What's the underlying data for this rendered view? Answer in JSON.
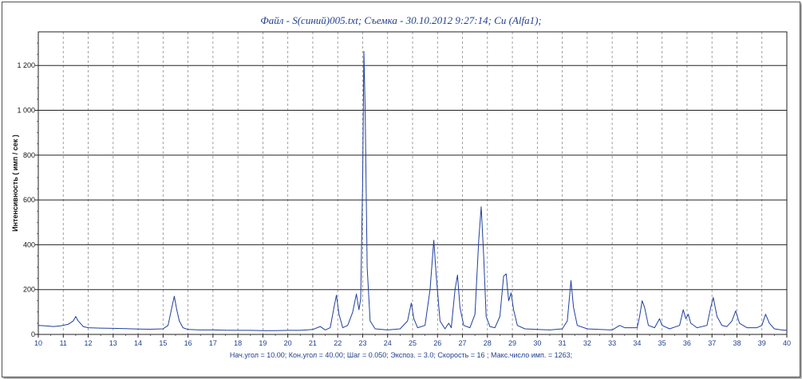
{
  "title": "Файл - S(синий)005.txt;  Съемка - 30.10.2012 9:27:14;   Cu (Alfa1);",
  "footer": "Нач.угол = 10.00;  Кон.угол = 40.00;  Шаг = 0.050;  Экспоз. = 3.0;  Скорость =  16 ;  Макс.число имп. = 1263;",
  "chart_data": {
    "type": "line",
    "title": "Файл - S(синий)005.txt;  Съемка - 30.10.2012 9:27:14;   Cu (Alfa1);",
    "xlabel": "",
    "ylabel": "Интенсивность  ( имп / сек )",
    "xlim": [
      10,
      40
    ],
    "ylim": [
      0,
      1400
    ],
    "x_ticks": [
      "10",
      "11",
      "12",
      "13",
      "14",
      "15",
      "16",
      "17",
      "18",
      "19",
      "20",
      "21",
      "22",
      "23",
      "24",
      "25",
      "26",
      "27",
      "28",
      "29",
      "30",
      "31",
      "32",
      "33",
      "34",
      "35",
      "36",
      "37",
      "38",
      "39",
      "40"
    ],
    "y_ticks": [
      "0",
      "200",
      "400",
      "600",
      "800",
      "1 000",
      "1 200"
    ],
    "grid": {
      "x": "dashed",
      "y": "solid"
    },
    "series": [
      {
        "color": "#1f3f9f",
        "points": [
          [
            10.0,
            40
          ],
          [
            10.3,
            38
          ],
          [
            10.6,
            35
          ],
          [
            10.9,
            38
          ],
          [
            11.2,
            45
          ],
          [
            11.4,
            60
          ],
          [
            11.5,
            80
          ],
          [
            11.6,
            60
          ],
          [
            11.8,
            35
          ],
          [
            12.0,
            30
          ],
          [
            12.5,
            28
          ],
          [
            13.0,
            27
          ],
          [
            13.5,
            26
          ],
          [
            14.0,
            24
          ],
          [
            14.5,
            23
          ],
          [
            15.0,
            25
          ],
          [
            15.2,
            40
          ],
          [
            15.35,
            120
          ],
          [
            15.45,
            170
          ],
          [
            15.55,
            110
          ],
          [
            15.65,
            60
          ],
          [
            15.8,
            30
          ],
          [
            16.0,
            22
          ],
          [
            16.5,
            20
          ],
          [
            17.0,
            20
          ],
          [
            17.5,
            19
          ],
          [
            18.0,
            18
          ],
          [
            18.5,
            18
          ],
          [
            19.0,
            17
          ],
          [
            19.5,
            17
          ],
          [
            20.0,
            18
          ],
          [
            20.5,
            18
          ],
          [
            21.0,
            22
          ],
          [
            21.3,
            35
          ],
          [
            21.5,
            20
          ],
          [
            21.7,
            30
          ],
          [
            21.85,
            120
          ],
          [
            21.95,
            175
          ],
          [
            22.05,
            90
          ],
          [
            22.2,
            30
          ],
          [
            22.4,
            40
          ],
          [
            22.6,
            100
          ],
          [
            22.75,
            180
          ],
          [
            22.85,
            110
          ],
          [
            22.92,
            160
          ],
          [
            23.0,
            700
          ],
          [
            23.05,
            1263
          ],
          [
            23.1,
            1000
          ],
          [
            23.18,
            300
          ],
          [
            23.3,
            60
          ],
          [
            23.5,
            25
          ],
          [
            24.0,
            20
          ],
          [
            24.5,
            25
          ],
          [
            24.8,
            60
          ],
          [
            24.95,
            140
          ],
          [
            25.05,
            70
          ],
          [
            25.2,
            30
          ],
          [
            25.5,
            40
          ],
          [
            25.7,
            200
          ],
          [
            25.85,
            420
          ],
          [
            25.95,
            260
          ],
          [
            26.1,
            60
          ],
          [
            26.3,
            25
          ],
          [
            26.45,
            50
          ],
          [
            26.55,
            30
          ],
          [
            26.7,
            200
          ],
          [
            26.8,
            265
          ],
          [
            26.9,
            120
          ],
          [
            27.05,
            40
          ],
          [
            27.3,
            30
          ],
          [
            27.5,
            90
          ],
          [
            27.65,
            420
          ],
          [
            27.75,
            570
          ],
          [
            27.85,
            350
          ],
          [
            27.95,
            80
          ],
          [
            28.1,
            35
          ],
          [
            28.3,
            30
          ],
          [
            28.5,
            80
          ],
          [
            28.65,
            260
          ],
          [
            28.75,
            270
          ],
          [
            28.85,
            150
          ],
          [
            28.95,
            185
          ],
          [
            29.05,
            110
          ],
          [
            29.2,
            40
          ],
          [
            29.5,
            25
          ],
          [
            30.0,
            22
          ],
          [
            30.5,
            20
          ],
          [
            31.0,
            25
          ],
          [
            31.2,
            60
          ],
          [
            31.35,
            240
          ],
          [
            31.45,
            120
          ],
          [
            31.6,
            40
          ],
          [
            32.0,
            25
          ],
          [
            32.5,
            22
          ],
          [
            33.0,
            20
          ],
          [
            33.3,
            40
          ],
          [
            33.5,
            30
          ],
          [
            34.0,
            30
          ],
          [
            34.1,
            80
          ],
          [
            34.2,
            150
          ],
          [
            34.3,
            120
          ],
          [
            34.45,
            40
          ],
          [
            34.7,
            30
          ],
          [
            34.9,
            70
          ],
          [
            35.0,
            40
          ],
          [
            35.3,
            25
          ],
          [
            35.7,
            40
          ],
          [
            35.85,
            110
          ],
          [
            35.95,
            70
          ],
          [
            36.05,
            90
          ],
          [
            36.15,
            50
          ],
          [
            36.4,
            30
          ],
          [
            36.8,
            40
          ],
          [
            36.95,
            120
          ],
          [
            37.05,
            165
          ],
          [
            37.2,
            80
          ],
          [
            37.4,
            40
          ],
          [
            37.6,
            35
          ],
          [
            37.8,
            60
          ],
          [
            37.95,
            105
          ],
          [
            38.1,
            50
          ],
          [
            38.4,
            30
          ],
          [
            38.8,
            30
          ],
          [
            39.0,
            40
          ],
          [
            39.15,
            90
          ],
          [
            39.3,
            50
          ],
          [
            39.5,
            25
          ],
          [
            39.8,
            20
          ],
          [
            40.0,
            18
          ]
        ]
      }
    ]
  }
}
